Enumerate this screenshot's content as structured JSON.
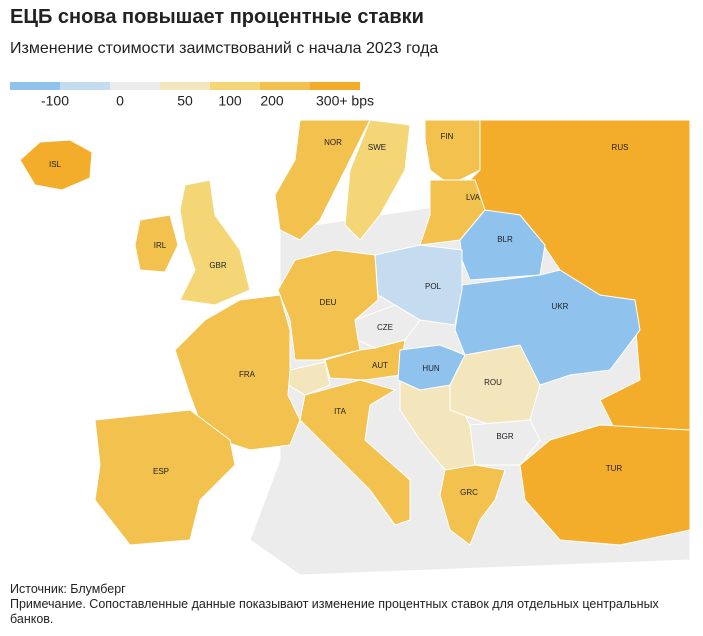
{
  "header": {
    "title": "ЕЦБ снова повышает процентные ставки",
    "subtitle": "Изменение стоимости заимствований с начала 2023 года"
  },
  "legend": {
    "labels": [
      "-100",
      "0",
      "50",
      "100",
      "200",
      "300+ bps"
    ],
    "colors": [
      "#8fc3ee",
      "#c5dcf0",
      "#ececec",
      "#f4e6bc",
      "#f4d677",
      "#f2c14e",
      "#f4ad2a"
    ]
  },
  "countries": [
    {
      "label": "ISL",
      "color": "#f4ad2a"
    },
    {
      "label": "IRL",
      "color": "#f2c14e"
    },
    {
      "label": "GBR",
      "color": "#f4d677"
    },
    {
      "label": "NOR",
      "color": "#f2c14e"
    },
    {
      "label": "SWE",
      "color": "#f4d677"
    },
    {
      "label": "FIN",
      "color": "#f2c14e"
    },
    {
      "label": "RUS",
      "color": "#f4ad2a"
    },
    {
      "label": "LVA",
      "color": "#f2c14e"
    },
    {
      "label": "BLR",
      "color": "#8fc3ee"
    },
    {
      "label": "UKR",
      "color": "#8fc3ee"
    },
    {
      "label": "POL",
      "color": "#c5dcf0"
    },
    {
      "label": "DEU",
      "color": "#f2c14e"
    },
    {
      "label": "CZE",
      "color": "#ececec"
    },
    {
      "label": "AUT",
      "color": "#f2c14e"
    },
    {
      "label": "HUN",
      "color": "#8fc3ee"
    },
    {
      "label": "FRA",
      "color": "#f2c14e"
    },
    {
      "label": "ESP",
      "color": "#f2c14e"
    },
    {
      "label": "ITA",
      "color": "#f2c14e"
    },
    {
      "label": "ROU",
      "color": "#f4e6bc"
    },
    {
      "label": "BGR",
      "color": "#ececec"
    },
    {
      "label": "GRC",
      "color": "#f2c14e"
    },
    {
      "label": "TUR",
      "color": "#f4ad2a"
    }
  ],
  "footer": {
    "source": "Источник: Блумберг",
    "note": "Примечание. Сопоставленные данные показывают изменение процентных ставок для отдельных центральных банков."
  }
}
